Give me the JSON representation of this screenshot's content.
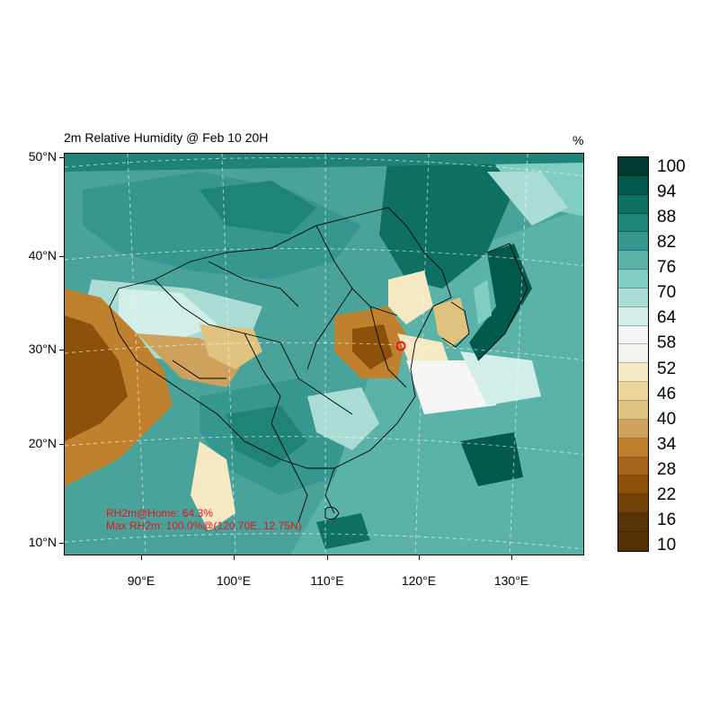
{
  "title": "2m Relative Humidity @ Feb 10 20H",
  "unit": "%",
  "lat_labels": [
    "50°N",
    "40°N",
    "30°N",
    "20°N",
    "10°N"
  ],
  "lon_labels": [
    "90°E",
    "100°E",
    "110°E",
    "120°E",
    "130°E"
  ],
  "legend": {
    "labels": [
      "100",
      "94",
      "88",
      "82",
      "76",
      "70",
      "64",
      "58",
      "52",
      "46",
      "40",
      "34",
      "28",
      "22",
      "16",
      "10"
    ],
    "colors": [
      "#003c30",
      "#01594c",
      "#0e6f63",
      "#208377",
      "#35978f",
      "#5ab2a8",
      "#80cdc1",
      "#abdcd3",
      "#d2eee9",
      "#f5f5f5",
      "#f3f2ec",
      "#f6e8c3",
      "#ebd59a",
      "#dfc27d",
      "#cea25c",
      "#bf812d",
      "#a6661c",
      "#8c510a",
      "#734208",
      "#5b3406",
      "#543005"
    ]
  },
  "annotations": {
    "home": "RH2m@Home: 64.3%",
    "max": "Max RH2m: 100.0%@(120.70E, 12.75N)"
  },
  "marker": {
    "name": "home-marker",
    "color": "#e8141e"
  }
}
